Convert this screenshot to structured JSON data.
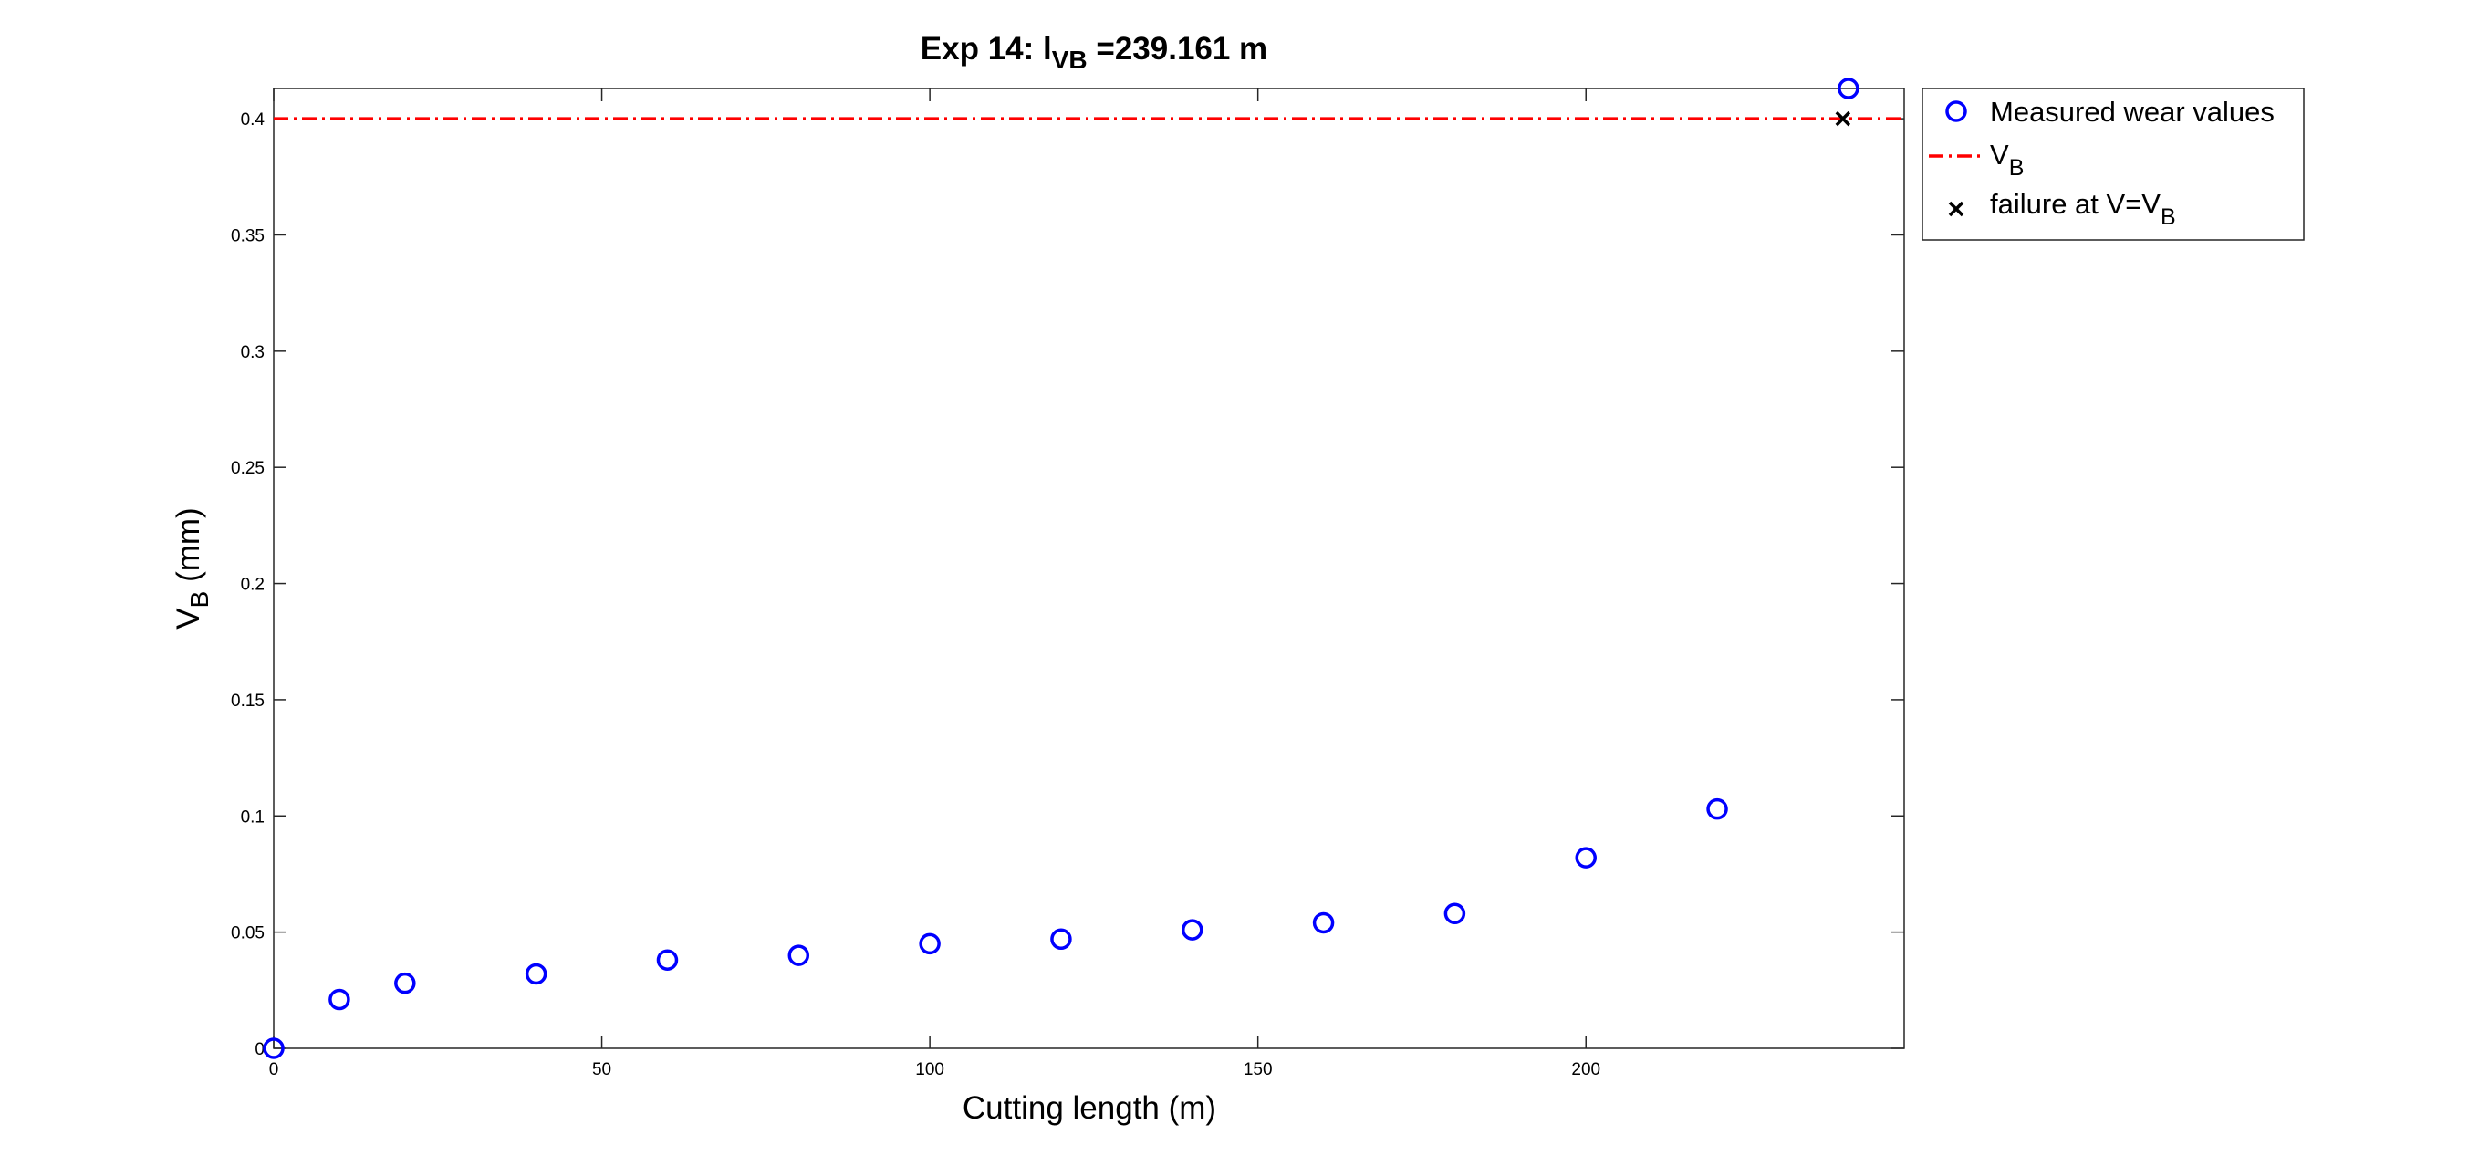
{
  "chart_data": {
    "type": "scatter",
    "title": {
      "prefix": "Exp 14: l",
      "sub": "VB",
      "suffix": " =239.161 m"
    },
    "xlabel": "Cutting length (m)",
    "ylabel": {
      "main": "V",
      "sub": "B",
      "suffix": " (mm)"
    },
    "xlim": [
      0,
      248.5
    ],
    "ylim": [
      0,
      0.413
    ],
    "xticks": [
      {
        "value": 0,
        "label": "0"
      },
      {
        "value": 50,
        "label": "50"
      },
      {
        "value": 100,
        "label": "100"
      },
      {
        "value": 150,
        "label": "150"
      },
      {
        "value": 200,
        "label": "200"
      }
    ],
    "yticks": [
      {
        "value": 0,
        "label": "0"
      },
      {
        "value": 0.05,
        "label": "0.05"
      },
      {
        "value": 0.1,
        "label": "0.1"
      },
      {
        "value": 0.15,
        "label": "0.15"
      },
      {
        "value": 0.2,
        "label": "0.2"
      },
      {
        "value": 0.25,
        "label": "0.25"
      },
      {
        "value": 0.3,
        "label": "0.3"
      },
      {
        "value": 0.35,
        "label": "0.35"
      },
      {
        "value": 0.4,
        "label": "0.4"
      }
    ],
    "grid": false,
    "legend_position": "outside-top-right",
    "series": [
      {
        "name": "Measured wear values",
        "marker": "circle",
        "color": "#0000ff",
        "x": [
          0,
          10,
          20,
          40,
          60,
          80,
          100,
          120,
          140,
          160,
          180,
          200,
          220,
          240
        ],
        "y": [
          0,
          0.021,
          0.028,
          0.032,
          0.038,
          0.04,
          0.045,
          0.047,
          0.051,
          0.054,
          0.058,
          0.082,
          0.103,
          0.413
        ]
      },
      {
        "name": {
          "main": "V",
          "sub": "B"
        },
        "type": "hline",
        "style": "dash-dot",
        "color": "#ff0000",
        "y": 0.4
      },
      {
        "name": {
          "main": "failure at V=V",
          "sub": "B"
        },
        "marker": "x",
        "color": "#000000",
        "x": [
          239.161
        ],
        "y": [
          0.4
        ]
      }
    ]
  }
}
